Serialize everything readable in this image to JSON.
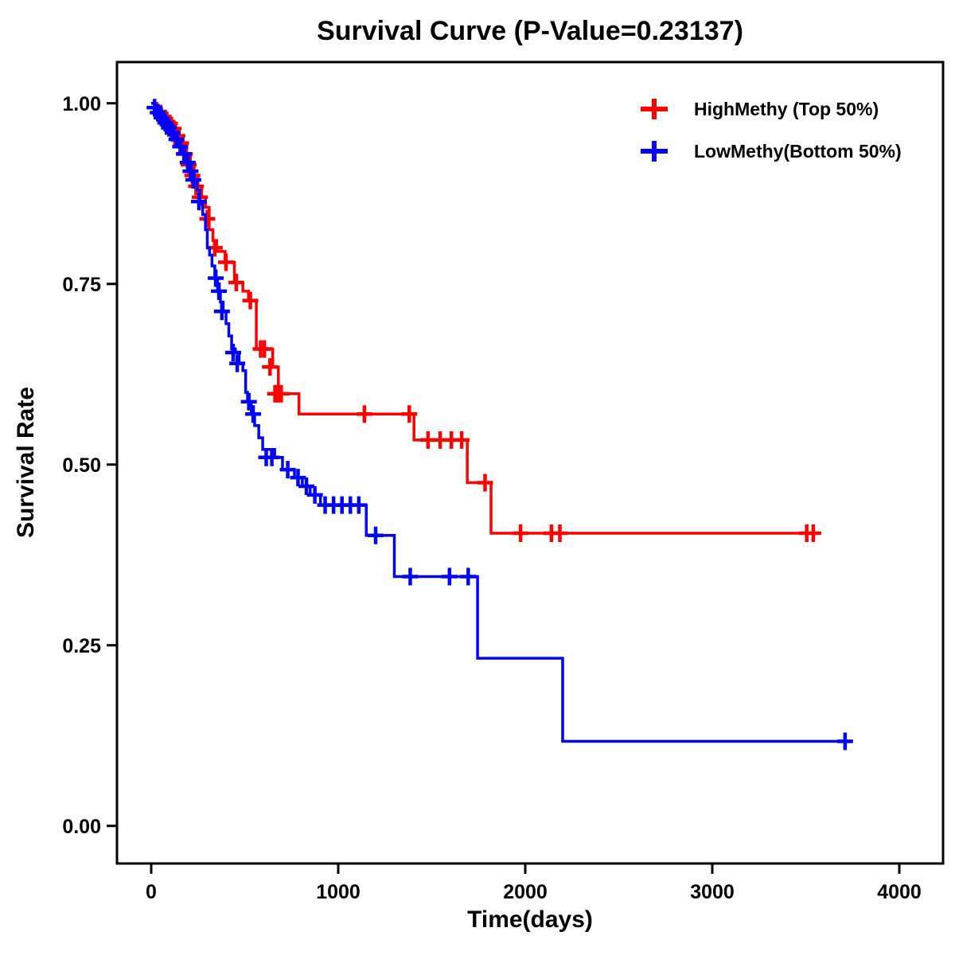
{
  "chart_data": {
    "type": "line",
    "subtype": "kaplan-meier-step",
    "title": "Survival Curve (P-Value=0.23137)",
    "p_value": "0.23137",
    "xlabel": "Time(days)",
    "ylabel": "Survival Rate",
    "xlim": [
      -183,
      4234
    ],
    "ylim": [
      -0.052,
      1.057
    ],
    "xticks": [
      0,
      1000,
      2000,
      3000,
      4000
    ],
    "xtick_labels": [
      "0",
      "1000",
      "2000",
      "3000",
      "4000"
    ],
    "yticks": [
      0.0,
      0.25,
      0.5,
      0.75,
      1.0
    ],
    "ytick_labels": [
      "0.00",
      "0.25",
      "0.50",
      "0.75",
      "1.00"
    ],
    "grid": false,
    "legend_position": "top-right",
    "frame_color": "#000000",
    "series": [
      {
        "id": "highmethy",
        "name": "HighMethy (Top 50%)",
        "color": "#ff0000",
        "step": [
          [
            0,
            1.0
          ],
          [
            30,
            0.993
          ],
          [
            55,
            0.986
          ],
          [
            80,
            0.979
          ],
          [
            105,
            0.972
          ],
          [
            130,
            0.965
          ],
          [
            150,
            0.955
          ],
          [
            170,
            0.945
          ],
          [
            190,
            0.93
          ],
          [
            210,
            0.915
          ],
          [
            230,
            0.9
          ],
          [
            250,
            0.885
          ],
          [
            270,
            0.87
          ],
          [
            290,
            0.856
          ],
          [
            310,
            0.825
          ],
          [
            330,
            0.81
          ],
          [
            350,
            0.795
          ],
          [
            395,
            0.78
          ],
          [
            445,
            0.752
          ],
          [
            490,
            0.74
          ],
          [
            520,
            0.727
          ],
          [
            562,
            0.66
          ],
          [
            650,
            0.635
          ],
          [
            680,
            0.598
          ],
          [
            790,
            0.57
          ],
          [
            1405,
            0.534
          ],
          [
            1690,
            0.475
          ],
          [
            1817,
            0.405
          ],
          [
            3525,
            0.405
          ]
        ],
        "censors": [
          [
            50,
            0.986
          ],
          [
            75,
            0.979
          ],
          [
            100,
            0.972
          ],
          [
            120,
            0.965
          ],
          [
            140,
            0.955
          ],
          [
            160,
            0.945
          ],
          [
            180,
            0.93
          ],
          [
            200,
            0.915
          ],
          [
            220,
            0.9
          ],
          [
            240,
            0.885
          ],
          [
            260,
            0.87
          ],
          [
            300,
            0.84
          ],
          [
            340,
            0.8
          ],
          [
            400,
            0.78
          ],
          [
            455,
            0.752
          ],
          [
            530,
            0.727
          ],
          [
            585,
            0.66
          ],
          [
            605,
            0.66
          ],
          [
            635,
            0.635
          ],
          [
            662,
            0.598
          ],
          [
            678,
            0.598
          ],
          [
            695,
            0.598
          ],
          [
            1140,
            0.57
          ],
          [
            1380,
            0.57
          ],
          [
            1480,
            0.534
          ],
          [
            1545,
            0.534
          ],
          [
            1605,
            0.534
          ],
          [
            1660,
            0.534
          ],
          [
            1785,
            0.475
          ],
          [
            1975,
            0.405
          ],
          [
            2140,
            0.405
          ],
          [
            2185,
            0.405
          ],
          [
            3505,
            0.405
          ],
          [
            3540,
            0.405
          ]
        ]
      },
      {
        "id": "lowmethy",
        "name": "LowMethy(Bottom 50%)",
        "color": "#0000ff",
        "step": [
          [
            0,
            1.0
          ],
          [
            20,
            0.994
          ],
          [
            40,
            0.987
          ],
          [
            60,
            0.98
          ],
          [
            80,
            0.973
          ],
          [
            100,
            0.966
          ],
          [
            120,
            0.959
          ],
          [
            140,
            0.95
          ],
          [
            160,
            0.94
          ],
          [
            180,
            0.93
          ],
          [
            200,
            0.918
          ],
          [
            215,
            0.906
          ],
          [
            230,
            0.894
          ],
          [
            245,
            0.88
          ],
          [
            260,
            0.864
          ],
          [
            275,
            0.846
          ],
          [
            290,
            0.825
          ],
          [
            300,
            0.8
          ],
          [
            312,
            0.79
          ],
          [
            325,
            0.775
          ],
          [
            340,
            0.758
          ],
          [
            355,
            0.74
          ],
          [
            370,
            0.725
          ],
          [
            385,
            0.712
          ],
          [
            400,
            0.695
          ],
          [
            415,
            0.678
          ],
          [
            430,
            0.66
          ],
          [
            450,
            0.655
          ],
          [
            470,
            0.64
          ],
          [
            490,
            0.63
          ],
          [
            505,
            0.6
          ],
          [
            515,
            0.587
          ],
          [
            535,
            0.57
          ],
          [
            553,
            0.554
          ],
          [
            575,
            0.537
          ],
          [
            596,
            0.521
          ],
          [
            660,
            0.51
          ],
          [
            702,
            0.493
          ],
          [
            766,
            0.482
          ],
          [
            808,
            0.47
          ],
          [
            850,
            0.458
          ],
          [
            905,
            0.444
          ],
          [
            1150,
            0.402
          ],
          [
            1300,
            0.345
          ],
          [
            1745,
            0.232
          ],
          [
            2200,
            0.117
          ],
          [
            3720,
            0.117
          ]
        ],
        "censors": [
          [
            18,
            0.994
          ],
          [
            35,
            0.987
          ],
          [
            55,
            0.98
          ],
          [
            75,
            0.973
          ],
          [
            95,
            0.966
          ],
          [
            115,
            0.959
          ],
          [
            135,
            0.95
          ],
          [
            155,
            0.94
          ],
          [
            175,
            0.93
          ],
          [
            195,
            0.918
          ],
          [
            210,
            0.906
          ],
          [
            225,
            0.894
          ],
          [
            255,
            0.864
          ],
          [
            345,
            0.758
          ],
          [
            362,
            0.74
          ],
          [
            378,
            0.712
          ],
          [
            438,
            0.655
          ],
          [
            460,
            0.64
          ],
          [
            522,
            0.587
          ],
          [
            545,
            0.57
          ],
          [
            615,
            0.51
          ],
          [
            645,
            0.51
          ],
          [
            730,
            0.493
          ],
          [
            785,
            0.482
          ],
          [
            830,
            0.47
          ],
          [
            875,
            0.458
          ],
          [
            930,
            0.444
          ],
          [
            975,
            0.444
          ],
          [
            1020,
            0.444
          ],
          [
            1065,
            0.444
          ],
          [
            1110,
            0.444
          ],
          [
            1200,
            0.402
          ],
          [
            1385,
            0.345
          ],
          [
            1595,
            0.345
          ],
          [
            1695,
            0.345
          ],
          [
            3710,
            0.117
          ]
        ]
      }
    ]
  }
}
